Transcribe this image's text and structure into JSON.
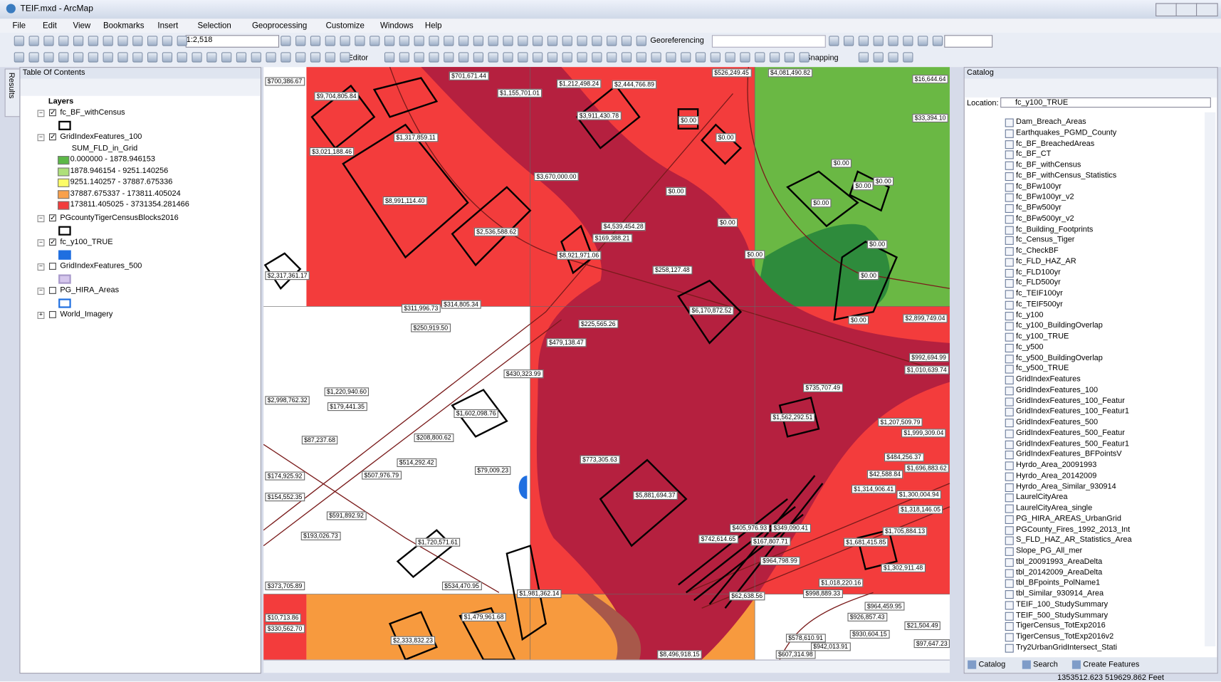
{
  "window": {
    "title": "TEIF.mxd - ArcMap"
  },
  "menu": [
    "File",
    "Edit",
    "View",
    "Bookmarks",
    "Insert",
    "Selection",
    "Geoprocessing",
    "Customize",
    "Windows",
    "Help"
  ],
  "toolbar": {
    "scale": "1:2,518",
    "georeferencing": "Georeferencing",
    "editor": "Editor",
    "snapping": "Snapping"
  },
  "toc": {
    "title": "Table Of Contents",
    "side_tab": "Results",
    "root": "Layers",
    "layers": [
      {
        "name": "fc_BF_withCensus",
        "checked": true,
        "symbol": {
          "fill": "#ffffff",
          "stroke": "#000000"
        }
      },
      {
        "name": "GridIndexFeatures_100",
        "checked": true,
        "field": "SUM_FLD_in_Grid",
        "legend": [
          {
            "label": "0.000000 - 1878.946153",
            "color": "#5cb847"
          },
          {
            "label": "1878.946154 - 9251.140256",
            "color": "#aee07a"
          },
          {
            "label": "9251.140257 - 37887.675336",
            "color": "#fcfc66"
          },
          {
            "label": "37887.675337 - 173811.405024",
            "color": "#f9a04a"
          },
          {
            "label": "173811.405025 - 3731354.281466",
            "color": "#f23c3c"
          }
        ]
      },
      {
        "name": "PGcountyTigerCensusBlocks2016",
        "checked": true,
        "symbol": {
          "fill": "#ffffff",
          "stroke": "#000000"
        }
      },
      {
        "name": "fc_y100_TRUE",
        "checked": true,
        "symbol": {
          "fill": "#1f6fe0",
          "stroke": "#1f6fe0"
        }
      },
      {
        "name": "GridIndexFeatures_500",
        "checked": false,
        "symbol": {
          "fill": "#d5c6ec",
          "stroke": "#a99acb"
        }
      },
      {
        "name": "PG_HIRA_Areas",
        "checked": false,
        "symbol": {
          "fill": "#ffffff",
          "stroke": "#1f6fe0"
        }
      },
      {
        "name": "World_Imagery",
        "checked": false
      }
    ]
  },
  "map": {
    "labels": [
      "$700,386.67",
      "$9,704,805.84",
      "$701,671.44",
      "$1,155,701.01",
      "$1,212,498.24",
      "$2,444,766.89",
      "$526,249.45",
      "$4,081,490.82",
      "$16,644.64",
      "$3,911,430.78",
      "$33,394.10",
      "$0.00",
      "$0.00",
      "$1,317,859.11",
      "$3,021,188.46",
      "$0.00",
      "$0.00",
      "$0.00",
      "$3,670,000.00",
      "$0.00",
      "$8,991,114.40",
      "$0.00",
      "$0.00",
      "$4,539,454.28",
      "$169,388.21",
      "$2,536,588.62",
      "$0.00",
      "$8,921,971.06",
      "$0.00",
      "$258,127.48",
      "$0.00",
      "$2,317,361.17",
      "$311,996.73",
      "$314,805.34",
      "$6,170,872.52",
      "$0.00",
      "$2,899,749.04",
      "$250,919.50",
      "$225,565.26",
      "$479,138.47",
      "$992,694.99",
      "$1,010,639.74",
      "$430,323.99",
      "$1,220,940.60",
      "$2,998,762.32",
      "$179,441.35",
      "$735,707.49",
      "$1,602,098.76",
      "$1,562,292.51",
      "$1,207,509.79",
      "$1,999,309.04",
      "$87,237.68",
      "$208,800.62",
      "$484,256.37",
      "$514,292.42",
      "$773,305.63",
      "$1,696,883.62",
      "$79,009.23",
      "$174,925.92",
      "$507,976.79",
      "$42,588.84",
      "$1,314,906.41",
      "$1,300,004.94",
      "$154,552.35",
      "$5,881,694.37",
      "$1,318,146.05",
      "$591,892.92",
      "$405,976.93",
      "$349,090.41",
      "$1,705,884.13",
      "$193,026.73",
      "$742,614.65",
      "$167,807.71",
      "$1,681,415.85",
      "$1,720,571.61",
      "$964,798.99",
      "$1,302,911.48",
      "$373,705.89",
      "$534,470.95",
      "$1,018,220.16",
      "$1,981,362.14",
      "$62,638.56",
      "$998,889.33",
      "$964,459.95",
      "$10,713.86",
      "$1,479,961.68",
      "$926,857.43",
      "$330,562.70",
      "$21,504.49",
      "$930,604.15",
      "$2,333,832.23",
      "$578,610.91",
      "$942,013.91",
      "$97,647.23",
      "$8,496,918.15",
      "$607,314.98"
    ]
  },
  "catalog": {
    "title": "Catalog",
    "location_label": "Location:",
    "location": "fc_y100_TRUE",
    "items": [
      "Dam_Breach_Areas",
      "Earthquakes_PGMD_County",
      "fc_BF_BreachedAreas",
      "fc_BF_CT",
      "fc_BF_withCensus",
      "fc_BF_withCensus_Statistics",
      "fc_BFw100yr",
      "fc_BFw100yr_v2",
      "fc_BFw500yr",
      "fc_BFw500yr_v2",
      "fc_Building_Footprints",
      "fc_Census_Tiger",
      "fc_CheckBF",
      "fc_FLD_HAZ_AR",
      "fc_FLD100yr",
      "fc_FLD500yr",
      "fc_TEIF100yr",
      "fc_TEIF500yr",
      "fc_y100",
      "fc_y100_BuildingOverlap",
      "fc_y100_TRUE",
      "fc_y500",
      "fc_y500_BuildingOverlap",
      "fc_y500_TRUE",
      "GridIndexFeatures",
      "GridIndexFeatures_100",
      "GridIndexFeatures_100_Featur",
      "GridIndexFeatures_100_Featur1",
      "GridIndexFeatures_500",
      "GridIndexFeatures_500_Featur",
      "GridIndexFeatures_500_Featur1",
      "GridIndexFeatures_BFPointsV",
      "Hyrdo_Area_20091993",
      "Hyrdo_Area_20142009",
      "Hyrdo_Area_Similar_930914",
      "LaurelCityArea",
      "LaurelCityArea_single",
      "PG_HIRA_AREAS_UrbanGrid",
      "PGCounty_Fires_1992_2013_Int",
      "S_FLD_HAZ_AR_Statistics_Area",
      "Slope_PG_All_mer",
      "tbl_20091993_AreaDelta",
      "tbl_20142009_AreaDelta",
      "tbl_BFpoints_PolName1",
      "tbl_Similar_930914_Area",
      "TEIF_100_StudySummary",
      "TEIF_500_StudySummary",
      "TigerCensus_TotExp2016",
      "TigerCensus_TotExp2016v2",
      "Try2UrbanGridIntersect_Stati"
    ],
    "tabs": [
      "Catalog",
      "Search",
      "Create Features"
    ]
  },
  "status": {
    "coordinates": "1353512.623  519629.862 Feet"
  }
}
